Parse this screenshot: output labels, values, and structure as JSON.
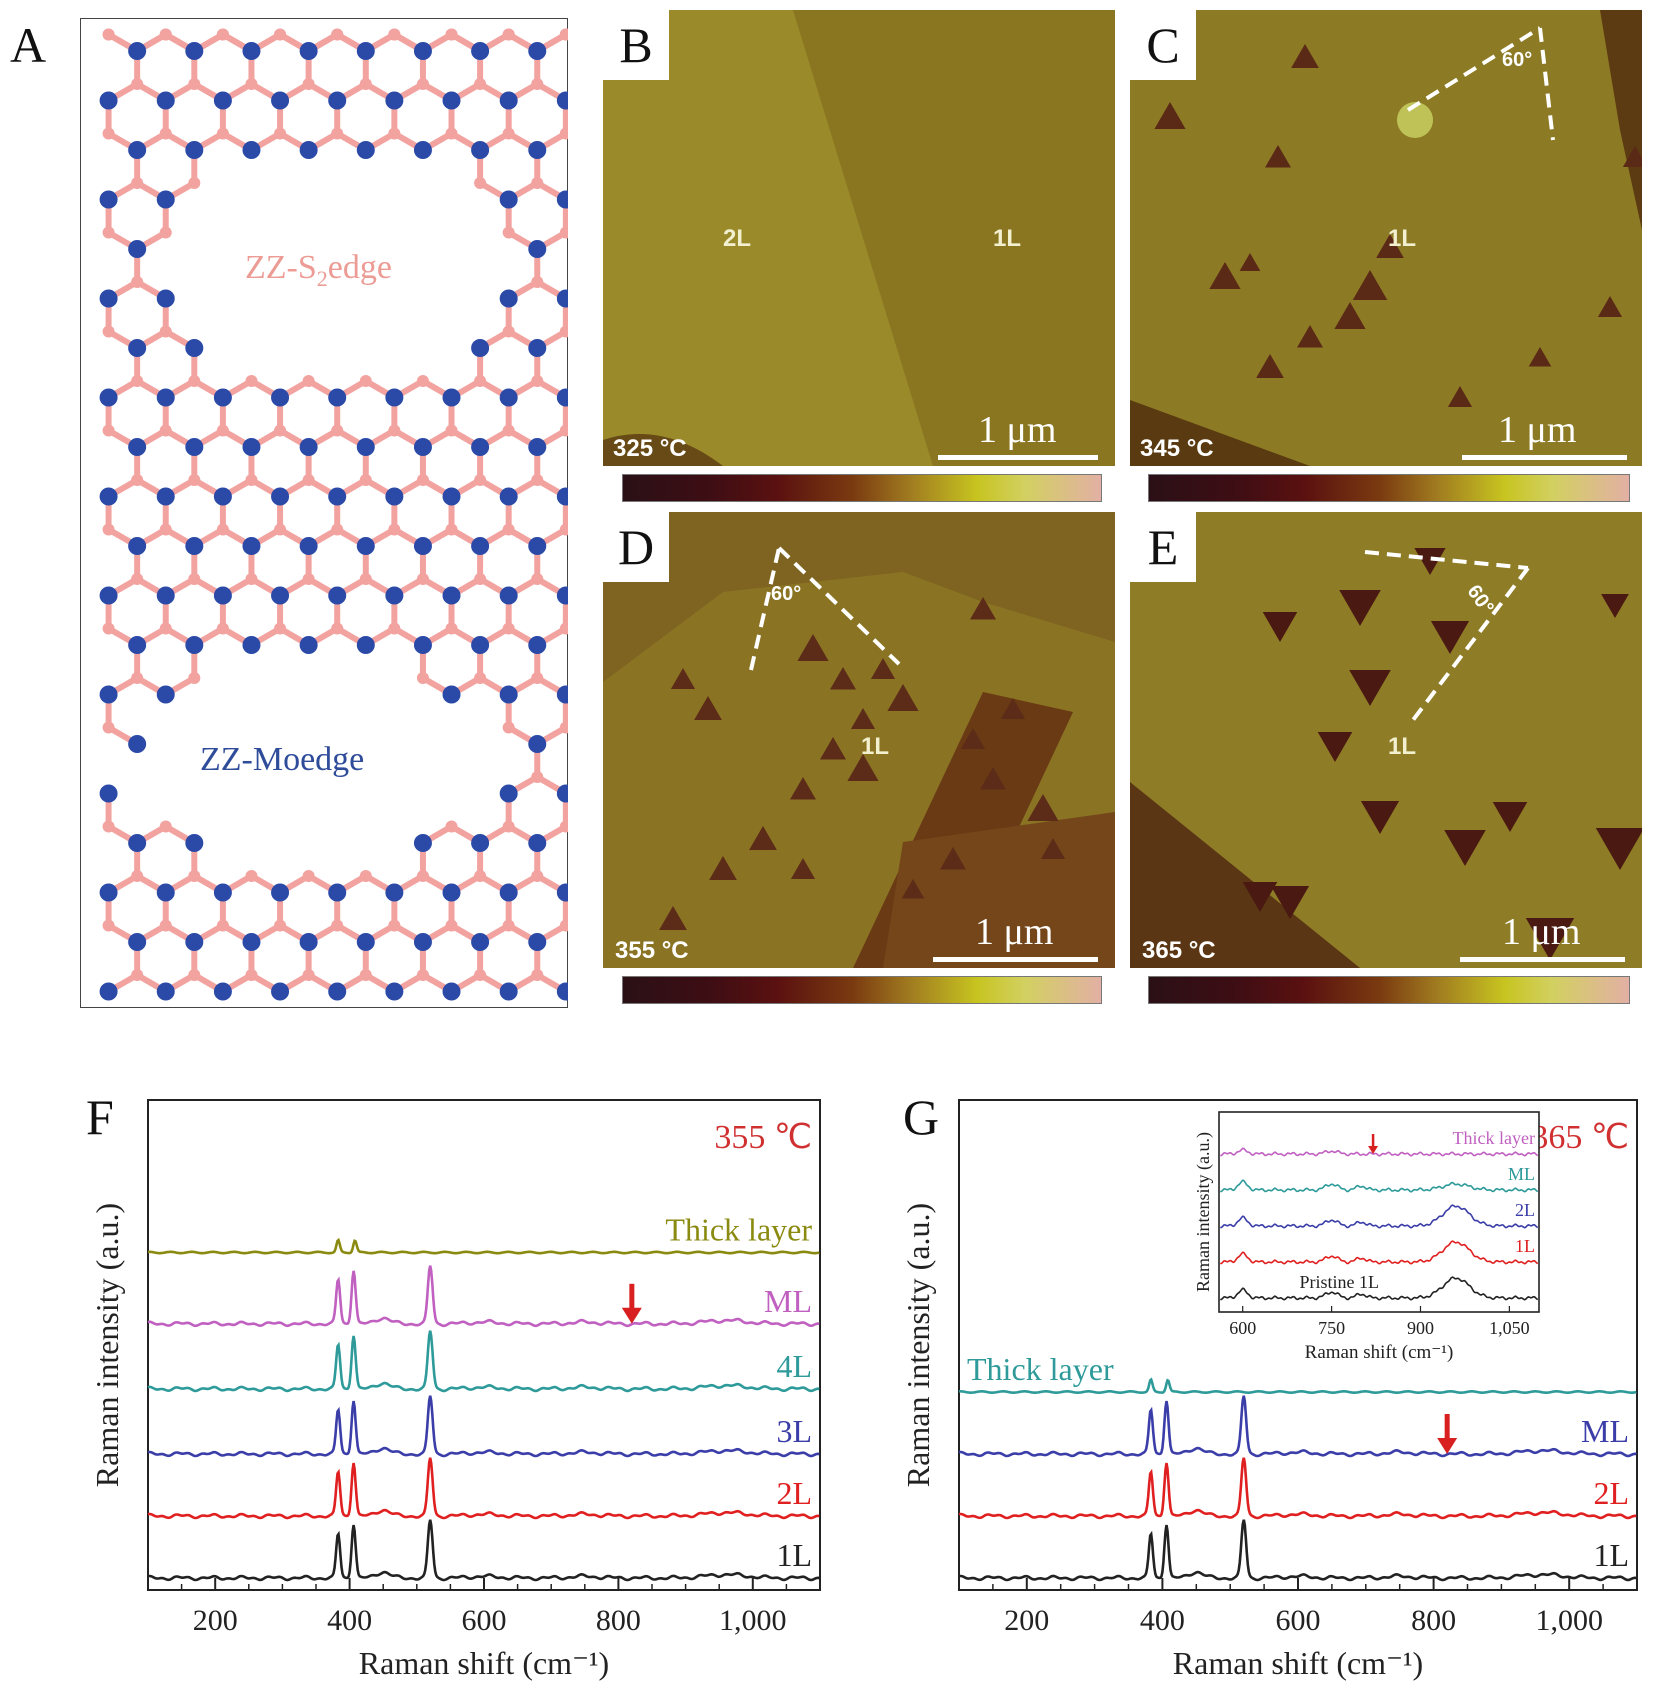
{
  "panel_a": {
    "label": "A",
    "s_edge_prefix": "ZZ-S",
    "s_edge_sub": "2",
    "s_edge_suffix": "edge",
    "mo_edge_label": "ZZ-Moedge",
    "colors": {
      "sulfur": "#f2a3a0",
      "molybdenum": "#2b4aa8"
    }
  },
  "afm_panels": [
    {
      "key": "B",
      "label": "B",
      "temperature": "325 °C",
      "scale_bar": "1 μm",
      "regions": [
        "2L",
        "1L"
      ]
    },
    {
      "key": "C",
      "label": "C",
      "temperature": "345 °C",
      "scale_bar": "1 μm",
      "regions": [
        "1L"
      ],
      "angle": "60°"
    },
    {
      "key": "D",
      "label": "D",
      "temperature": "355 °C",
      "scale_bar": "1 μm",
      "regions": [
        "1L"
      ],
      "angle": "60°"
    },
    {
      "key": "E",
      "label": "E",
      "temperature": "365 °C",
      "scale_bar": "1 μm",
      "regions": [
        "1L"
      ],
      "angle": "60°"
    }
  ],
  "chart_data": [
    {
      "panel": "F",
      "type": "line",
      "temperature": "355 ℃",
      "xlabel": "Raman shift (cm⁻¹)",
      "ylabel": "Raman intensity (a.u.)",
      "xlim": [
        100,
        1100
      ],
      "xticks": [
        "200",
        "400",
        "600",
        "800",
        "1,000"
      ],
      "xtick_values": [
        200,
        400,
        600,
        800,
        1000
      ],
      "arrow_x": 820,
      "series": [
        {
          "name": "1L",
          "color": "#222222",
          "offset": 0.0
        },
        {
          "name": "2L",
          "color": "#e02020",
          "offset": 1.0
        },
        {
          "name": "3L",
          "color": "#3b3ea8",
          "offset": 2.0
        },
        {
          "name": "4L",
          "color": "#2e9a9a",
          "offset": 3.05
        },
        {
          "name": "ML",
          "color": "#c060c0",
          "offset": 4.1
        },
        {
          "name": "Thick layer",
          "color": "#8a8a10",
          "offset": 5.25
        }
      ]
    },
    {
      "panel": "G",
      "type": "line",
      "temperature": "365 ℃",
      "xlabel": "Raman shift (cm⁻¹)",
      "ylabel": "Raman intensity (a.u.)",
      "xlim": [
        100,
        1100
      ],
      "xticks": [
        "200",
        "400",
        "600",
        "800",
        "1,000"
      ],
      "xtick_values": [
        200,
        400,
        600,
        800,
        1000
      ],
      "arrow_x": 820,
      "series": [
        {
          "name": "1L",
          "color": "#222222",
          "offset": 0.0
        },
        {
          "name": "2L",
          "color": "#e02020",
          "offset": 1.0
        },
        {
          "name": "ML",
          "color": "#3b3ea8",
          "offset": 2.0
        },
        {
          "name": "Thick layer",
          "color": "#2e9a9a",
          "offset": 3.0
        }
      ],
      "inset": {
        "xlabel": "Raman shift (cm⁻¹)",
        "ylabel": "Raman intensity (a.u.)",
        "xlim": [
          560,
          1100
        ],
        "xticks": [
          "600",
          "750",
          "900",
          "1,050"
        ],
        "xtick_values": [
          600,
          750,
          900,
          1050
        ],
        "arrow_x": 820,
        "series": [
          {
            "name": "Pristine 1L",
            "color": "#222222"
          },
          {
            "name": "1L",
            "color": "#e02020"
          },
          {
            "name": "2L",
            "color": "#3b3ea8"
          },
          {
            "name": "ML",
            "color": "#2e9a9a"
          },
          {
            "name": "Thick layer",
            "color": "#c060c0"
          }
        ]
      }
    }
  ]
}
